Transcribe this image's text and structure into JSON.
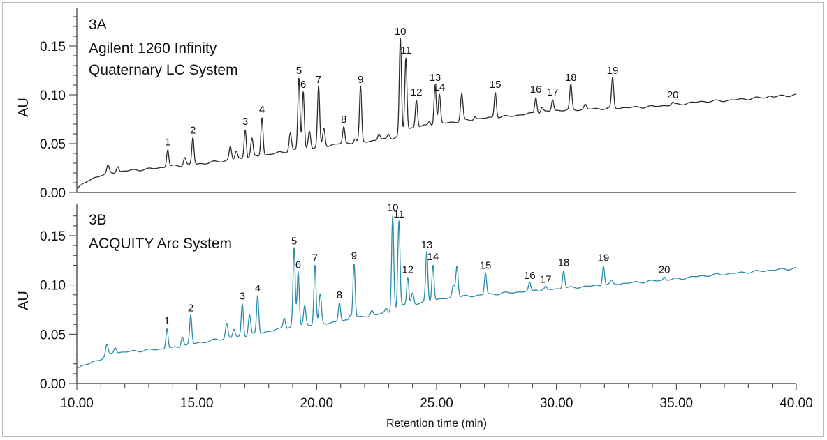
{
  "chart_data": [
    {
      "type": "line",
      "panel": "3A",
      "title_lines": [
        "Agilent 1260 Infinity",
        "Quaternary LC System"
      ],
      "ylabel": "AU",
      "xlabel": "",
      "xlim": [
        10,
        40
      ],
      "ylim": [
        0,
        0.18
      ],
      "yticks": [
        "0.00",
        "0.05",
        "0.10",
        "0.15"
      ],
      "color": "#2b2b2b",
      "baseline": [
        [
          10,
          0.005
        ],
        [
          10.5,
          0.012
        ],
        [
          11,
          0.018
        ],
        [
          12,
          0.022
        ],
        [
          13,
          0.024
        ],
        [
          14,
          0.027
        ],
        [
          15,
          0.029
        ],
        [
          16,
          0.032
        ],
        [
          17,
          0.035
        ],
        [
          18,
          0.039
        ],
        [
          19,
          0.043
        ],
        [
          20,
          0.046
        ],
        [
          21,
          0.05
        ],
        [
          22,
          0.052
        ],
        [
          23,
          0.055
        ],
        [
          23.4,
          0.057
        ],
        [
          23.9,
          0.066
        ],
        [
          25,
          0.07
        ],
        [
          26,
          0.073
        ],
        [
          27,
          0.076
        ],
        [
          28,
          0.078
        ],
        [
          29,
          0.081
        ],
        [
          30,
          0.084
        ],
        [
          31,
          0.085
        ],
        [
          32,
          0.086
        ],
        [
          33,
          0.087
        ],
        [
          34,
          0.088
        ],
        [
          35,
          0.09
        ],
        [
          36,
          0.093
        ],
        [
          37,
          0.094
        ],
        [
          38,
          0.096
        ],
        [
          39,
          0.098
        ],
        [
          40,
          0.1
        ]
      ],
      "peaks": [
        {
          "t": 13.79,
          "h": 0.044,
          "label": "1"
        },
        {
          "t": 14.84,
          "h": 0.056,
          "label": "2"
        },
        {
          "t": 17.02,
          "h": 0.065,
          "label": "3"
        },
        {
          "t": 17.72,
          "h": 0.077,
          "label": "4"
        },
        {
          "t": 19.26,
          "h": 0.117,
          "label": "5"
        },
        {
          "t": 19.44,
          "h": 0.103,
          "label": "6"
        },
        {
          "t": 20.08,
          "h": 0.108,
          "label": "7"
        },
        {
          "t": 21.13,
          "h": 0.067,
          "label": "8"
        },
        {
          "t": 21.83,
          "h": 0.108,
          "label": "9"
        },
        {
          "t": 23.49,
          "h": 0.157,
          "label": "10"
        },
        {
          "t": 23.72,
          "h": 0.138,
          "label": "11"
        },
        {
          "t": 24.16,
          "h": 0.095,
          "label": "12"
        },
        {
          "t": 24.94,
          "h": 0.11,
          "label": "13"
        },
        {
          "t": 25.12,
          "h": 0.1,
          "label": "14"
        },
        {
          "t": 26.05,
          "h": 0.101,
          "label": ""
        },
        {
          "t": 27.45,
          "h": 0.103,
          "label": "15"
        },
        {
          "t": 29.14,
          "h": 0.098,
          "label": "16"
        },
        {
          "t": 29.84,
          "h": 0.095,
          "label": "17"
        },
        {
          "t": 30.6,
          "h": 0.11,
          "label": "18"
        },
        {
          "t": 32.34,
          "h": 0.117,
          "label": "19"
        },
        {
          "t": 34.85,
          "h": 0.092,
          "label": "20"
        },
        {
          "t": 11.3,
          "h": 0.027,
          "label": ""
        },
        {
          "t": 11.7,
          "h": 0.027,
          "label": ""
        },
        {
          "t": 14.5,
          "h": 0.036,
          "label": ""
        },
        {
          "t": 16.4,
          "h": 0.047,
          "label": ""
        },
        {
          "t": 16.65,
          "h": 0.042,
          "label": ""
        },
        {
          "t": 17.3,
          "h": 0.055,
          "label": ""
        },
        {
          "t": 18.9,
          "h": 0.061,
          "label": ""
        },
        {
          "t": 19.7,
          "h": 0.063,
          "label": ""
        },
        {
          "t": 20.3,
          "h": 0.066,
          "label": ""
        },
        {
          "t": 21.6,
          "h": 0.055,
          "label": ""
        },
        {
          "t": 22.6,
          "h": 0.06,
          "label": ""
        },
        {
          "t": 23.0,
          "h": 0.06,
          "label": ""
        },
        {
          "t": 24.7,
          "h": 0.073,
          "label": ""
        },
        {
          "t": 26.6,
          "h": 0.078,
          "label": ""
        },
        {
          "t": 29.4,
          "h": 0.087,
          "label": ""
        },
        {
          "t": 31.2,
          "h": 0.09,
          "label": ""
        },
        {
          "t": 38.9,
          "h": 0.099,
          "label": ""
        }
      ]
    },
    {
      "type": "line",
      "panel": "3B",
      "title_lines": [
        "ACQUITY Arc System"
      ],
      "ylabel": "AU",
      "xlabel": "Retention time (min)",
      "xlim": [
        10,
        40
      ],
      "ylim": [
        0,
        0.18
      ],
      "yticks": [
        "0.00",
        "0.05",
        "0.10",
        "0.15"
      ],
      "xticks": [
        "10.00",
        "15.00",
        "20.00",
        "25.00",
        "30.00",
        "35.00",
        "40.00"
      ],
      "color": "#2a8cab",
      "baseline": [
        [
          10,
          0.016
        ],
        [
          10.5,
          0.02
        ],
        [
          11,
          0.025
        ],
        [
          11.5,
          0.031
        ],
        [
          12,
          0.032
        ],
        [
          13,
          0.034
        ],
        [
          14,
          0.036
        ],
        [
          15,
          0.041
        ],
        [
          16,
          0.045
        ],
        [
          17,
          0.048
        ],
        [
          18,
          0.053
        ],
        [
          19,
          0.058
        ],
        [
          20,
          0.06
        ],
        [
          21,
          0.063
        ],
        [
          22,
          0.068
        ],
        [
          23,
          0.072
        ],
        [
          23.3,
          0.075
        ],
        [
          23.6,
          0.08
        ],
        [
          24,
          0.08
        ],
        [
          25,
          0.085
        ],
        [
          26,
          0.088
        ],
        [
          27,
          0.09
        ],
        [
          28,
          0.092
        ],
        [
          29,
          0.094
        ],
        [
          30,
          0.096
        ],
        [
          31,
          0.098
        ],
        [
          32,
          0.1
        ],
        [
          33,
          0.102
        ],
        [
          34,
          0.104
        ],
        [
          35,
          0.106
        ],
        [
          36,
          0.109
        ],
        [
          37,
          0.111
        ],
        [
          38,
          0.113
        ],
        [
          39,
          0.115
        ],
        [
          40,
          0.117
        ]
      ],
      "peaks": [
        {
          "t": 13.76,
          "h": 0.056,
          "label": "1"
        },
        {
          "t": 14.75,
          "h": 0.069,
          "label": "2"
        },
        {
          "t": 16.9,
          "h": 0.081,
          "label": "3"
        },
        {
          "t": 17.54,
          "h": 0.089,
          "label": "4"
        },
        {
          "t": 19.06,
          "h": 0.137,
          "label": "5"
        },
        {
          "t": 19.23,
          "h": 0.113,
          "label": "6"
        },
        {
          "t": 19.93,
          "h": 0.12,
          "label": "7"
        },
        {
          "t": 20.95,
          "h": 0.082,
          "label": "8"
        },
        {
          "t": 21.56,
          "h": 0.122,
          "label": "9"
        },
        {
          "t": 23.17,
          "h": 0.171,
          "label": "10"
        },
        {
          "t": 23.43,
          "h": 0.164,
          "label": "11"
        },
        {
          "t": 23.8,
          "h": 0.108,
          "label": "12"
        },
        {
          "t": 24.59,
          "h": 0.133,
          "label": "13"
        },
        {
          "t": 24.85,
          "h": 0.121,
          "label": "14"
        },
        {
          "t": 25.85,
          "h": 0.12,
          "label": ""
        },
        {
          "t": 27.04,
          "h": 0.112,
          "label": "15"
        },
        {
          "t": 28.88,
          "h": 0.102,
          "label": "16"
        },
        {
          "t": 29.55,
          "h": 0.098,
          "label": "17"
        },
        {
          "t": 30.3,
          "h": 0.115,
          "label": "18"
        },
        {
          "t": 31.96,
          "h": 0.12,
          "label": "19"
        },
        {
          "t": 34.5,
          "h": 0.108,
          "label": "20"
        },
        {
          "t": 11.25,
          "h": 0.039,
          "label": ""
        },
        {
          "t": 11.6,
          "h": 0.037,
          "label": ""
        },
        {
          "t": 14.4,
          "h": 0.048,
          "label": ""
        },
        {
          "t": 16.25,
          "h": 0.061,
          "label": ""
        },
        {
          "t": 16.55,
          "h": 0.055,
          "label": ""
        },
        {
          "t": 17.2,
          "h": 0.07,
          "label": ""
        },
        {
          "t": 18.65,
          "h": 0.067,
          "label": ""
        },
        {
          "t": 19.5,
          "h": 0.079,
          "label": ""
        },
        {
          "t": 20.15,
          "h": 0.09,
          "label": ""
        },
        {
          "t": 21.4,
          "h": 0.07,
          "label": ""
        },
        {
          "t": 22.3,
          "h": 0.074,
          "label": ""
        },
        {
          "t": 22.9,
          "h": 0.076,
          "label": ""
        },
        {
          "t": 24.0,
          "h": 0.092,
          "label": ""
        },
        {
          "t": 25.7,
          "h": 0.1,
          "label": ""
        },
        {
          "t": 29.15,
          "h": 0.096,
          "label": ""
        },
        {
          "t": 32.3,
          "h": 0.104,
          "label": ""
        }
      ]
    }
  ]
}
